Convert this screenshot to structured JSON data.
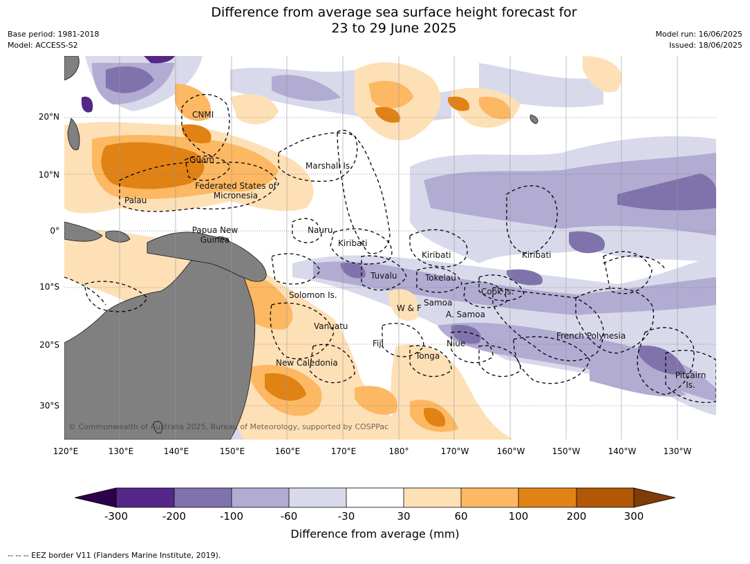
{
  "header": {
    "title_line1": "Difference from average sea surface height forecast for",
    "title_line2": "23 to 29 June 2025",
    "base_period": "Base period: 1981-2018",
    "model": "Model: ACCESS-S2",
    "model_run": "Model run: 16/06/2025",
    "issued": "Issued: 18/06/2025"
  },
  "map": {
    "lon_ticks": [
      "120°E",
      "130°E",
      "140°E",
      "150°E",
      "160°E",
      "170°E",
      "180°",
      "170°W",
      "160°W",
      "150°W",
      "140°W",
      "130°W"
    ],
    "lat_ticks": [
      "20°N",
      "10°N",
      "0°",
      "10°S",
      "20°S",
      "30°S"
    ],
    "regions": [
      "CNMI",
      "Guam",
      "Marshall Is.",
      "Federated States of Micronesia",
      "Palau",
      "Papua New Guinea",
      "Nauru",
      "Kiribati",
      "Kiribati",
      "Kiribati",
      "Tuvalu",
      "Tokelau",
      "Cook Is.",
      "Solomon Is.",
      "W & F",
      "Samoa",
      "A. Samoa",
      "Vanuatu",
      "Fiji",
      "Niue",
      "French Polynesia",
      "Tonga",
      "New Caledonia",
      "Pitcairn Is."
    ],
    "copyright": "© Commonwealth of Australia 2025, Bureau of Meteorology, supported by COSPPac",
    "colors": {
      "land": "#808080",
      "grid": "#999999"
    }
  },
  "legend": {
    "label": "Difference from average (mm)",
    "ticks": [
      "-300",
      "-200",
      "-100",
      "-60",
      "-30",
      "30",
      "60",
      "100",
      "200",
      "300"
    ],
    "colors": [
      "#2d004b",
      "#542788",
      "#8073ac",
      "#b2abd2",
      "#d8daeb",
      "#ffffff",
      "#fee0b6",
      "#fdb863",
      "#e08214",
      "#b35806",
      "#7f3b08"
    ]
  },
  "footnote": "--  --  -- EEZ border V11 (Flanders Marine Institute, 2019)."
}
